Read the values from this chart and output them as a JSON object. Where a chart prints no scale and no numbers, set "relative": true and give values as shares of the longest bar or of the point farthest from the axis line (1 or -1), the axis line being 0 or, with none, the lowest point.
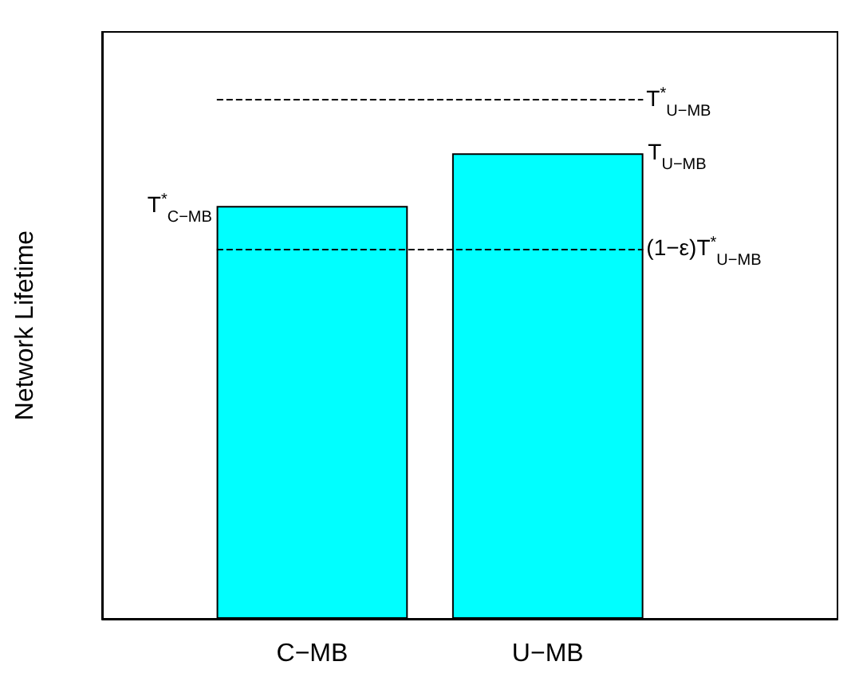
{
  "chart_data": {
    "type": "bar",
    "relative": true,
    "ylabel": "Network Lifetime",
    "categories": [
      "C−MB",
      "U−MB"
    ],
    "values": [
      0.887,
      1
    ],
    "color": "#00ffff",
    "grid": false,
    "ref_lines": [
      {
        "axis": "y",
        "value": 1.116,
        "label": "T$^{*}$$_{U−MB}$",
        "line_style": "dashed",
        "color": "#000000"
      },
      {
        "axis": "y",
        "value": 0.795,
        "label": "(1−ε)T$^{*}$$_{U−MB}$",
        "line_style": "dashed",
        "color": "#000000"
      }
    ],
    "annotations": [
      "T$^{*}$$_{C−MB}$",
      "T$_{U−MB}$"
    ]
  }
}
